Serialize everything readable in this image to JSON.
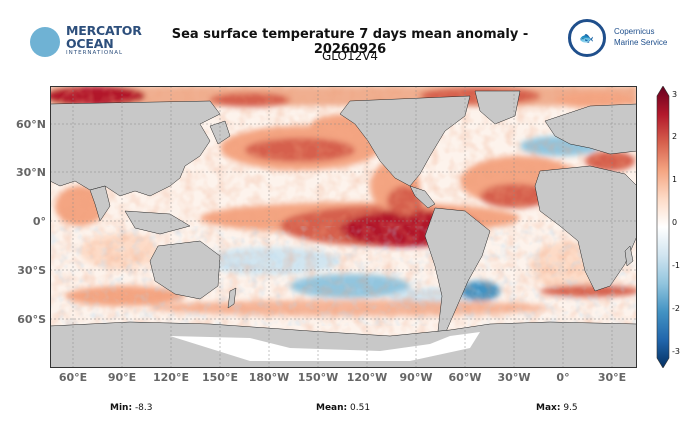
{
  "header": {
    "title": "Sea surface temperature 7 days mean anomaly - 20260926",
    "subtitle": "GLO12V4"
  },
  "logos": {
    "left": {
      "line1": "MERCATOR",
      "line2": "OCEAN",
      "line3": "INTERNATIONAL"
    },
    "right": {
      "line1": "Copernicus",
      "line2": "Marine Service"
    }
  },
  "map": {
    "lat_labels": [
      "60°N",
      "30°N",
      "0°",
      "30°S",
      "60°S"
    ],
    "lon_labels": [
      "60°E",
      "90°E",
      "120°E",
      "150°E",
      "180°W",
      "150°W",
      "120°W",
      "90°W",
      "60°W",
      "30°W",
      "0°",
      "30°E"
    ],
    "land_color": "#c8c8c8",
    "grid": true
  },
  "colorbar": {
    "min": -3,
    "max": 3,
    "ticks": [
      "3",
      "2",
      "1",
      "0",
      "-1",
      "-2",
      "-3"
    ],
    "colors": [
      "#053061",
      "#2166ac",
      "#4393c3",
      "#92c5de",
      "#d1e5f0",
      "#ffffff",
      "#fddbc7",
      "#f4a582",
      "#d6604d",
      "#b2182b",
      "#67001f"
    ]
  },
  "stats": {
    "min_label": "Min:",
    "min_value": "-8.3",
    "mean_label": "Mean:",
    "mean_value": "0.51",
    "max_label": "Max:",
    "max_value": "9.5"
  }
}
